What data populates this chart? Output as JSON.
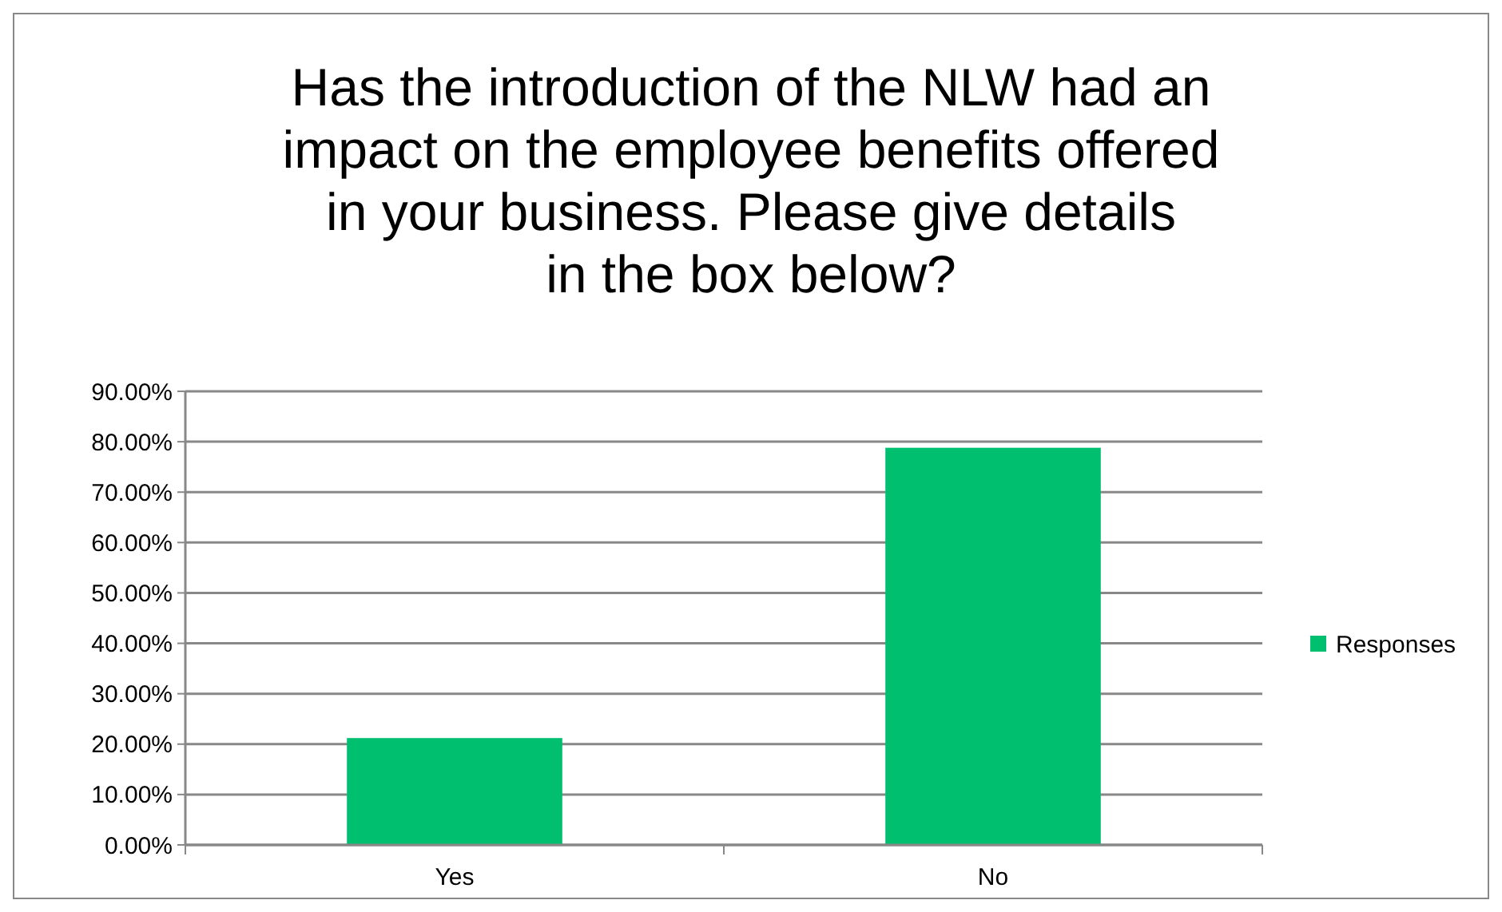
{
  "chart_data": {
    "type": "bar",
    "title": "Has the introduction of the NLW had an impact on the employee benefits offered in your business.  Please give details in the box below?",
    "categories": [
      "Yes",
      "No"
    ],
    "series": [
      {
        "name": "Responses",
        "color": "#00bf6f",
        "values": [
          21.2,
          78.8
        ]
      }
    ],
    "ylim": [
      0,
      90
    ],
    "yticks": [
      {
        "value": 0,
        "label": "0.00%"
      },
      {
        "value": 10,
        "label": "10.00%"
      },
      {
        "value": 20,
        "label": "20.00%"
      },
      {
        "value": 30,
        "label": "30.00%"
      },
      {
        "value": 40,
        "label": "40.00%"
      },
      {
        "value": 50,
        "label": "50.00%"
      },
      {
        "value": 60,
        "label": "60.00%"
      },
      {
        "value": 70,
        "label": "70.00%"
      },
      {
        "value": 80,
        "label": "80.00%"
      },
      {
        "value": 90,
        "label": "90.00%"
      }
    ],
    "grid": "y",
    "legend": "right"
  }
}
